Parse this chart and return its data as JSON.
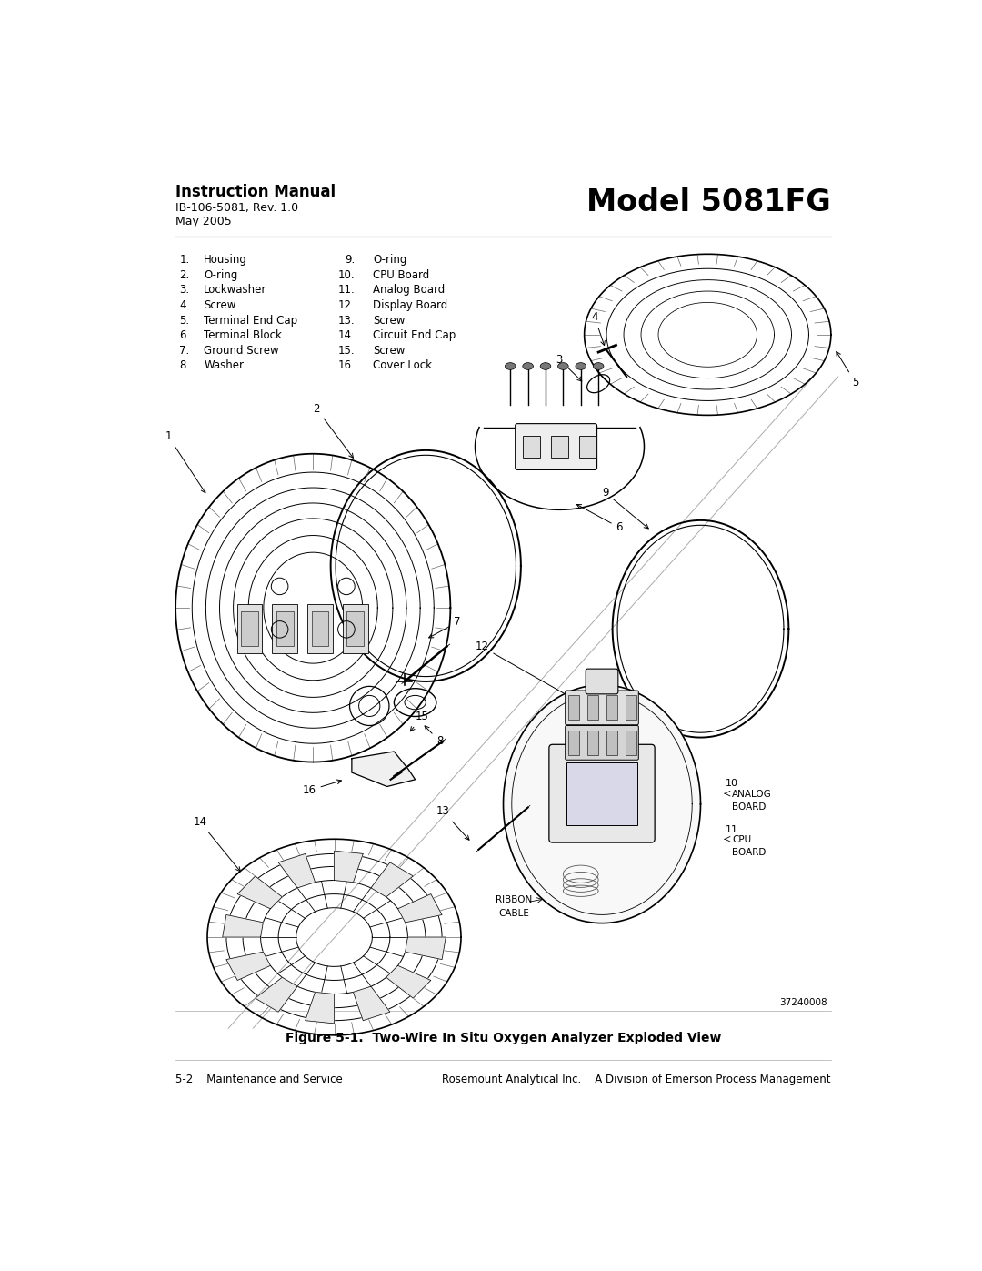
{
  "page_width": 10.8,
  "page_height": 13.97,
  "background_color": "#ffffff",
  "header_title": "Instruction Manual",
  "header_line1": "IB-106-5081, Rev. 1.0",
  "header_line2": "May 2005",
  "model_title": "Model 5081FG",
  "parts_col1_nums": [
    "1.",
    "2.",
    "3.",
    "4.",
    "5.",
    "6.",
    "7.",
    "8."
  ],
  "parts_col1_names": [
    "Housing",
    "O-ring",
    "Lockwasher",
    "Screw",
    "Terminal End Cap",
    "Terminal Block",
    "Ground Screw",
    "Washer"
  ],
  "parts_col2_nums": [
    "9.",
    "10.",
    "11.",
    "12.",
    "13.",
    "14.",
    "15.",
    "16."
  ],
  "parts_col2_names": [
    "O-ring",
    "CPU Board",
    "Analog Board",
    "Display Board",
    "Screw",
    "Circuit End Cap",
    "Screw",
    "Cover Lock"
  ],
  "figure_caption": "Figure 5-1.  Two-Wire In Situ Oxygen Analyzer Exploded View",
  "footer_left": "5-2    Maintenance and Service",
  "footer_right": "Rosemount Analytical Inc.    A Division of Emerson Process Management",
  "figure_number": "37240008",
  "text_color": "#000000",
  "gray_color": "#888888",
  "light_gray": "#cccccc",
  "diag_line_color": "#aaaaaa"
}
